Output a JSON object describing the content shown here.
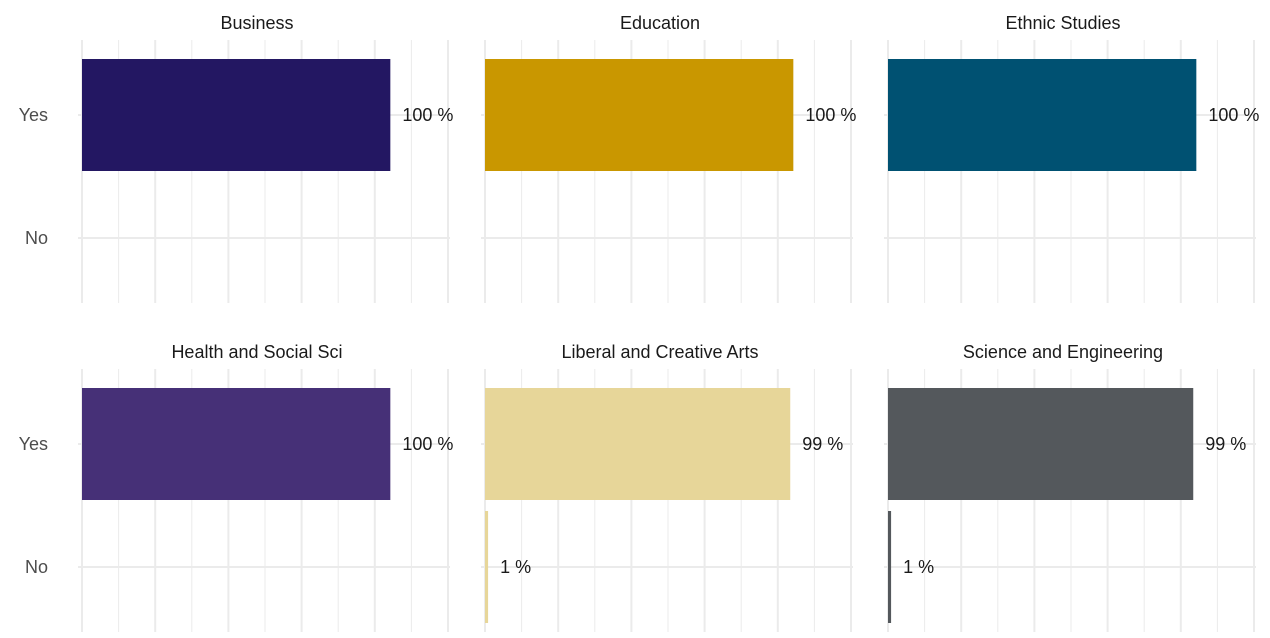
{
  "chart_data": {
    "type": "bar",
    "orientation": "horizontal",
    "categories": [
      "Yes",
      "No"
    ],
    "xlim": [
      0,
      100
    ],
    "grid": true,
    "panels": [
      {
        "title": "Business",
        "color": "#231762",
        "values": [
          100,
          0
        ],
        "labels": [
          "100 %",
          ""
        ]
      },
      {
        "title": "Education",
        "color": "#C99700",
        "values": [
          100,
          0
        ],
        "labels": [
          "100 %",
          ""
        ]
      },
      {
        "title": "Ethnic Studies",
        "color": "#005172",
        "values": [
          100,
          0
        ],
        "labels": [
          "100 %",
          ""
        ]
      },
      {
        "title": "Health and Social Sci",
        "color": "#463077",
        "values": [
          100,
          0
        ],
        "labels": [
          "100 %",
          ""
        ]
      },
      {
        "title": "Liberal and Creative Arts",
        "color": "#E7D699",
        "values": [
          99,
          1
        ],
        "labels": [
          "99 %",
          "1 %"
        ]
      },
      {
        "title": "Science and Engineering",
        "color": "#54585C",
        "values": [
          99,
          1
        ],
        "labels": [
          "99 %",
          "1 %"
        ]
      }
    ]
  }
}
